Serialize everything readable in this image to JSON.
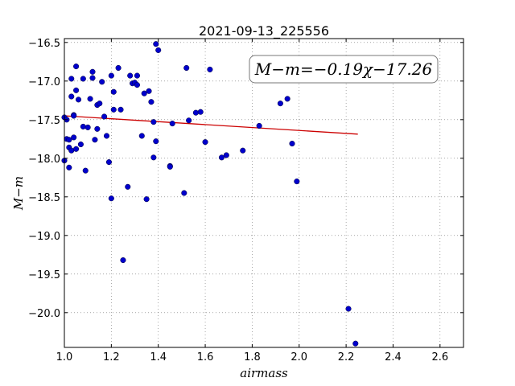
{
  "chart_data": {
    "type": "scatter",
    "title": "2021-09-13_225556",
    "xlabel": "airmass",
    "ylabel": "M−m",
    "xlim": [
      1.0,
      2.7
    ],
    "ylim": [
      -16.45,
      -20.45
    ],
    "y_inverted": true,
    "grid": true,
    "xticks": [
      1.0,
      1.2,
      1.4,
      1.6,
      1.8,
      2.0,
      2.2,
      2.4,
      2.6
    ],
    "xtick_labels": [
      "1.0",
      "1.2",
      "1.4",
      "1.6",
      "1.8",
      "2.0",
      "2.2",
      "2.4",
      "2.6"
    ],
    "yticks": [
      -16.5,
      -17.0,
      -17.5,
      -18.0,
      -18.5,
      -19.0,
      -19.5,
      -20.0
    ],
    "ytick_labels": [
      "−16.5",
      "−17.0",
      "−17.5",
      "−18.0",
      "−18.5",
      "−19.0",
      "−19.5",
      "−20.0"
    ],
    "annotation": "M−m=−0.19χ−17.26",
    "fit": {
      "slope": -0.19,
      "intercept": -17.26,
      "x_range": [
        1.0,
        2.25
      ],
      "color": "#cc0000"
    },
    "points": {
      "color": "#0000cc",
      "x": [
        1.0,
        1.01,
        1.02,
        1.02,
        1.03,
        1.03,
        1.04,
        1.04,
        1.05,
        1.05,
        1.06,
        1.07,
        1.08,
        1.08,
        1.09,
        1.1,
        1.11,
        1.12,
        1.12,
        1.13,
        1.14,
        1.14,
        1.15,
        1.16,
        1.17,
        1.18,
        1.19,
        1.2,
        1.2,
        1.21,
        1.21,
        1.23,
        1.24,
        1.25,
        1.27,
        1.28,
        1.29,
        1.3,
        1.31,
        1.31,
        1.33,
        1.34,
        1.35,
        1.36,
        1.37,
        1.38,
        1.38,
        1.39,
        1.39,
        1.4,
        1.45,
        1.45,
        1.46,
        1.51,
        1.52,
        1.53,
        1.56,
        1.58,
        1.6,
        1.62,
        1.67,
        1.69,
        1.76,
        1.83,
        1.92,
        1.95,
        1.97,
        1.99,
        2.21,
        2.24,
        1.0,
        1.01,
        1.02,
        1.03,
        1.04,
        1.05
      ],
      "y": [
        -18.03,
        -17.75,
        -17.76,
        -18.12,
        -17.2,
        -16.97,
        -17.44,
        -17.73,
        -16.81,
        -17.12,
        -17.24,
        -17.82,
        -16.97,
        -17.59,
        -18.16,
        -17.6,
        -17.23,
        -16.88,
        -16.96,
        -17.76,
        -17.31,
        -17.62,
        -17.29,
        -17.01,
        -17.46,
        -17.71,
        -18.05,
        -16.93,
        -18.52,
        -17.37,
        -17.14,
        -16.83,
        -17.37,
        -19.32,
        -18.37,
        -16.93,
        -17.03,
        -17.02,
        -16.93,
        -17.05,
        -17.71,
        -17.16,
        -18.53,
        -17.13,
        -17.27,
        -17.99,
        -17.53,
        -16.52,
        -17.78,
        -16.6,
        -18.1,
        -18.11,
        -17.55,
        -18.45,
        -16.83,
        -17.51,
        -17.41,
        -17.4,
        -17.79,
        -16.85,
        -17.99,
        -17.96,
        -17.9,
        -17.58,
        -17.29,
        -17.23,
        -17.81,
        -18.3,
        -19.95,
        -20.4,
        -17.47,
        -17.5,
        -17.86,
        -17.9,
        -17.45,
        -17.88
      ]
    }
  }
}
